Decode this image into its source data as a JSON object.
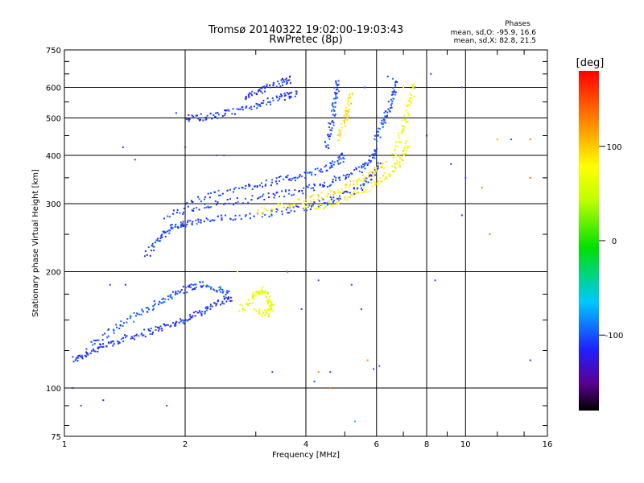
{
  "chart_data": {
    "type": "scatter",
    "title": "Tromsø 20140322 19:02:00-19:03:43",
    "subtitle": "RwPretec (8p)",
    "xlabel": "Frequency [MHz]",
    "ylabel": "Stationary phase Virtual Height [km]",
    "xscale": "log",
    "yscale": "log",
    "xlim": [
      1,
      16
    ],
    "ylim": [
      75,
      750
    ],
    "x_ticks": [
      1,
      2,
      4,
      6,
      8,
      10,
      16
    ],
    "x_tick_labels": [
      "1",
      "2",
      "4",
      "6",
      "8",
      "10",
      "16"
    ],
    "y_ticks": [
      75,
      100,
      200,
      300,
      400,
      500,
      600,
      750
    ],
    "y_tick_labels": [
      "75",
      "100",
      "200",
      "300",
      "400",
      "500",
      "600",
      "750"
    ],
    "grid": true,
    "stats": {
      "heading": "Phases",
      "line_o": "mean, sd,O: -95.9, 16.6",
      "line_x": "mean, sd,X:  82.8, 21.5"
    },
    "colorbar": {
      "label": "[deg]",
      "range": [
        -180,
        180
      ],
      "ticks": [
        100,
        0,
        -100
      ],
      "tick_labels": [
        "100",
        "0",
        "-100"
      ],
      "colormap": "rainbow (black-purple-blue-cyan-green-yellow-orange-red)"
    },
    "traces": [
      {
        "phase": -110,
        "points": [
          [
            1.05,
            118
          ],
          [
            1.12,
            122
          ],
          [
            1.2,
            126
          ],
          [
            1.3,
            130
          ],
          [
            1.4,
            134
          ],
          [
            1.55,
            138
          ],
          [
            1.7,
            142
          ],
          [
            1.85,
            146
          ],
          [
            2.0,
            150
          ],
          [
            2.15,
            156
          ],
          [
            2.3,
            162
          ],
          [
            2.5,
            168
          ],
          [
            2.6,
            172
          ]
        ]
      },
      {
        "phase": -100,
        "points": [
          [
            1.15,
            128
          ],
          [
            1.3,
            140
          ],
          [
            1.45,
            150
          ],
          [
            1.6,
            160
          ],
          [
            1.75,
            168
          ],
          [
            1.9,
            176
          ],
          [
            2.05,
            182
          ],
          [
            2.2,
            186
          ],
          [
            2.4,
            180
          ],
          [
            2.6,
            176
          ]
        ]
      },
      {
        "phase": -105,
        "points": [
          [
            1.6,
            220
          ],
          [
            1.7,
            240
          ],
          [
            1.8,
            255
          ],
          [
            1.9,
            262
          ],
          [
            2.0,
            266
          ],
          [
            2.2,
            270
          ],
          [
            2.5,
            275
          ],
          [
            3.0,
            281
          ],
          [
            3.5,
            287
          ],
          [
            4.0,
            294
          ],
          [
            4.5,
            303
          ],
          [
            5.0,
            315
          ],
          [
            5.5,
            332
          ],
          [
            5.9,
            355
          ],
          [
            6.1,
            380
          ]
        ]
      },
      {
        "phase": -105,
        "points": [
          [
            1.8,
            280
          ],
          [
            2.1,
            292
          ],
          [
            2.5,
            302
          ],
          [
            3.0,
            310
          ],
          [
            3.5,
            318
          ],
          [
            4.0,
            327
          ],
          [
            4.5,
            338
          ],
          [
            5.0,
            352
          ],
          [
            5.5,
            370
          ],
          [
            5.8,
            390
          ],
          [
            6.0,
            420
          ]
        ]
      },
      {
        "phase": -105,
        "points": [
          [
            2.0,
            300
          ],
          [
            2.4,
            318
          ],
          [
            2.8,
            330
          ],
          [
            3.2,
            340
          ],
          [
            3.6,
            348
          ],
          [
            4.0,
            356
          ],
          [
            4.5,
            370
          ],
          [
            4.8,
            385
          ],
          [
            5.0,
            400
          ]
        ]
      },
      {
        "phase": -108,
        "points": [
          [
            2.0,
            500
          ],
          [
            2.2,
            502
          ],
          [
            2.4,
            508
          ],
          [
            2.7,
            520
          ],
          [
            3.0,
            540
          ],
          [
            3.3,
            555
          ],
          [
            3.6,
            570
          ],
          [
            3.8,
            580
          ]
        ]
      },
      {
        "phase": -110,
        "points": [
          [
            2.8,
            560
          ],
          [
            3.0,
            580
          ],
          [
            3.2,
            600
          ],
          [
            3.5,
            620
          ],
          [
            3.7,
            630
          ]
        ]
      },
      {
        "phase": -100,
        "points": [
          [
            4.5,
            420
          ],
          [
            4.6,
            470
          ],
          [
            4.7,
            530
          ],
          [
            4.75,
            580
          ],
          [
            4.8,
            630
          ]
        ]
      },
      {
        "phase": -100,
        "points": [
          [
            6.0,
            440
          ],
          [
            6.2,
            480
          ],
          [
            6.4,
            520
          ],
          [
            6.6,
            570
          ],
          [
            6.7,
            630
          ]
        ]
      },
      {
        "phase": 85,
        "points": [
          [
            3.0,
            285
          ],
          [
            3.5,
            296
          ],
          [
            4.0,
            306
          ],
          [
            4.5,
            316
          ],
          [
            5.0,
            330
          ],
          [
            5.5,
            345
          ],
          [
            6.0,
            365
          ],
          [
            6.3,
            385
          ]
        ]
      },
      {
        "phase": 80,
        "points": [
          [
            4.0,
            290
          ],
          [
            4.6,
            300
          ],
          [
            5.2,
            314
          ],
          [
            5.8,
            332
          ],
          [
            6.3,
            350
          ],
          [
            6.7,
            372
          ],
          [
            7.0,
            400
          ],
          [
            7.2,
            430
          ]
        ]
      },
      {
        "phase": 90,
        "points": [
          [
            4.8,
            440
          ],
          [
            5.0,
            490
          ],
          [
            5.1,
            540
          ],
          [
            5.2,
            580
          ]
        ]
      },
      {
        "phase": 75,
        "points": [
          [
            6.6,
            400
          ],
          [
            6.9,
            450
          ],
          [
            7.1,
            500
          ],
          [
            7.3,
            560
          ],
          [
            7.4,
            610
          ]
        ]
      },
      {
        "phase": 65,
        "points": [
          [
            2.75,
            160
          ],
          [
            2.9,
            168
          ],
          [
            3.0,
            175
          ],
          [
            3.1,
            180
          ],
          [
            3.2,
            172
          ],
          [
            3.3,
            164
          ],
          [
            3.2,
            155
          ],
          [
            3.0,
            158
          ]
        ]
      }
    ],
    "scatter_points": [
      [
        1.3,
        185,
        -100
      ],
      [
        1.42,
        185,
        -110
      ],
      [
        1.05,
        100,
        -110
      ],
      [
        1.1,
        90,
        -100
      ],
      [
        1.25,
        93,
        -110
      ],
      [
        1.5,
        390,
        -100
      ],
      [
        1.4,
        420,
        -110
      ],
      [
        2.4,
        400,
        -100
      ],
      [
        2.0,
        420,
        -105
      ],
      [
        2.7,
        200,
        80
      ],
      [
        3.6,
        200,
        -100
      ],
      [
        5.6,
        600,
        -100
      ],
      [
        7.5,
        600,
        -100
      ],
      [
        8.2,
        650,
        -100
      ],
      [
        9.8,
        600,
        -100
      ],
      [
        10.0,
        350,
        -100
      ],
      [
        9.8,
        280,
        -100
      ],
      [
        11,
        330,
        120
      ],
      [
        12,
        440,
        110
      ],
      [
        14.5,
        440,
        130
      ],
      [
        14.5,
        350,
        140
      ],
      [
        14.5,
        118,
        -110
      ],
      [
        13,
        440,
        -100
      ],
      [
        4.5,
        420,
        -100
      ],
      [
        8.0,
        450,
        -150
      ],
      [
        8.4,
        190,
        -100
      ],
      [
        5.2,
        185,
        -100
      ],
      [
        4.3,
        190,
        -100
      ],
      [
        5.5,
        160,
        -100
      ],
      [
        6.1,
        114,
        -95
      ],
      [
        5.9,
        112,
        -100
      ],
      [
        4.6,
        110,
        -100
      ],
      [
        4.2,
        104,
        -100
      ],
      [
        3.3,
        110,
        -100
      ],
      [
        5.3,
        82,
        -40
      ],
      [
        4.6,
        100,
        130
      ],
      [
        4.3,
        110,
        120
      ],
      [
        2.5,
        400,
        -100
      ],
      [
        1.9,
        515,
        -105
      ],
      [
        6.4,
        640,
        -110
      ],
      [
        7.0,
        600,
        90
      ],
      [
        9.2,
        380,
        -110
      ],
      [
        11.5,
        250,
        130
      ],
      [
        3.9,
        160,
        -100
      ],
      [
        5.7,
        118,
        120
      ],
      [
        1.8,
        90,
        -100
      ]
    ]
  }
}
